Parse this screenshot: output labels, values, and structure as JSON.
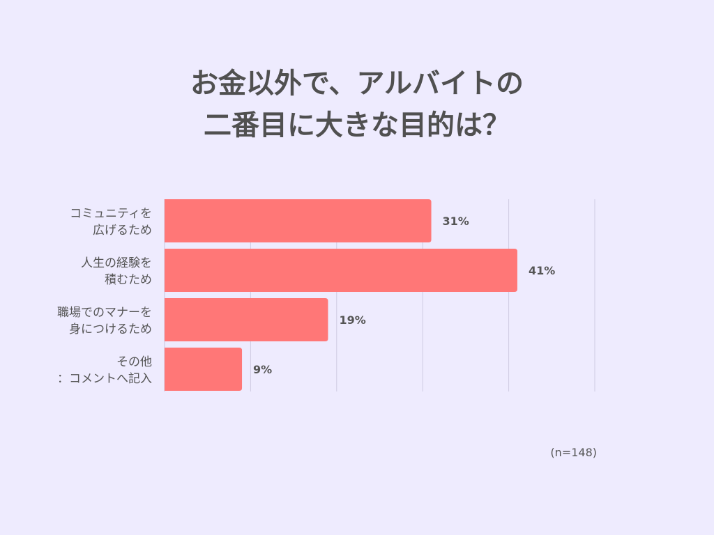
{
  "title_lines": [
    "お金以外で、アルバイトの",
    "二番目に大きな目的は？"
  ],
  "note": "(n=148)",
  "chart_data": {
    "type": "bar",
    "orientation": "horizontal",
    "categories": [
      [
        "コミュニティを",
        "広げるため"
      ],
      [
        "人生の経験を",
        "積むため"
      ],
      [
        "職場でのマナーを",
        "身につけるため"
      ],
      [
        "その他",
        "：コメントへ記入"
      ]
    ],
    "values": [
      31,
      41,
      19,
      9
    ],
    "data_labels": [
      "31%",
      "41%",
      "19%",
      "9%"
    ],
    "xlim": [
      0,
      50
    ],
    "grid": true,
    "bar_color": "#ff7777",
    "grid_color": "#cfcbe2"
  }
}
